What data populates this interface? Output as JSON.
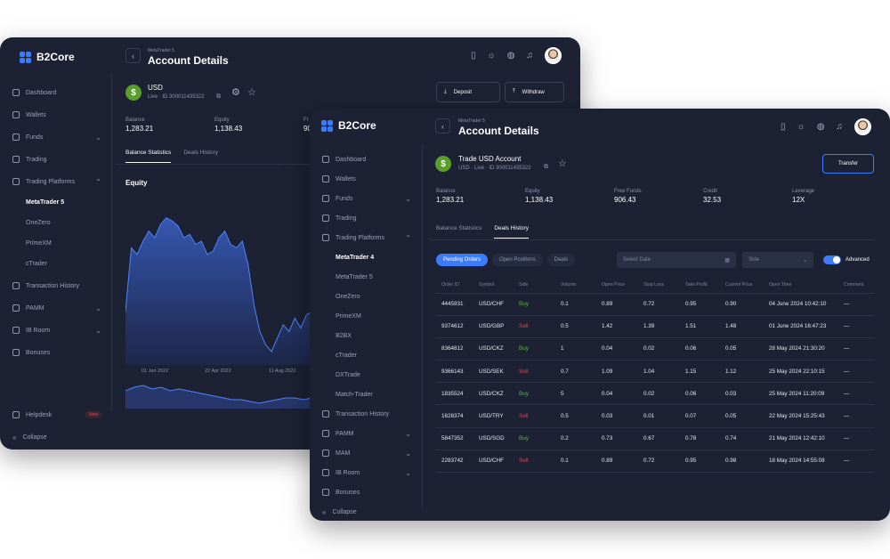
{
  "colors": {
    "window_bg": "#1c2133",
    "accent": "#3b7cff",
    "buy": "#5dbb3f",
    "sell": "#e2484a",
    "currency_badge": "#5a9e2a"
  },
  "back": {
    "brand": "B2Core",
    "header": {
      "subtitle": "MetaTrader 5",
      "title": "Account Details"
    },
    "nav": {
      "dashboard": "Dashboard",
      "wallets": "Wallets",
      "funds": "Funds",
      "trading": "Trading",
      "trading_platforms": "Trading Platforms",
      "platforms": [
        "MetaTrader 5",
        "OneZero",
        "PrimeXM",
        "cTrader"
      ],
      "transaction_history": "Transaction History",
      "pamm": "PAMM",
      "ib_room": "IB Room",
      "bonuses": "Bonuses",
      "helpdesk": "Helpdesk",
      "helpdesk_badge": "New",
      "collapse": "Collapse"
    },
    "account": {
      "currency": "USD",
      "sub": "Live · ID 300011435322",
      "currency_icon": "$"
    },
    "buttons": {
      "deposit": "Deposit",
      "withdraw": "Withdraw"
    },
    "stats": {
      "balance_label": "Balance",
      "balance_value": "1,283.21",
      "equity_label": "Equity",
      "equity_value": "1,138.43",
      "third_label": "Fr",
      "third_value": "90"
    },
    "tabs": {
      "balance_statistics": "Balance Statistics",
      "deals_history": "Deals History"
    },
    "chart_data": {
      "type": "area",
      "title": "Equity",
      "x_tick_labels": [
        "01 Jan 2022",
        "22 Apr 2022",
        "11 Aug 2022"
      ],
      "series": [
        {
          "values": [
            32,
            70,
            66,
            74,
            80,
            76,
            84,
            88,
            86,
            83,
            76,
            78,
            72,
            74,
            66,
            68,
            76,
            80,
            72,
            70,
            74,
            60,
            36,
            20,
            12,
            8,
            16,
            24,
            20,
            28,
            22,
            30,
            32
          ]
        }
      ],
      "overview": {
        "values": [
          10,
          12,
          13,
          11,
          12,
          10,
          11,
          10,
          9,
          8,
          7,
          6,
          5,
          5,
          4,
          3,
          4,
          5,
          6,
          6,
          5,
          6
        ]
      }
    }
  },
  "front": {
    "brand": "B2Core",
    "header": {
      "subtitle": "MetaTrader 5",
      "title": "Account Details"
    },
    "nav": {
      "dashboard": "Dashboard",
      "wallets": "Wallets",
      "funds": "Funds",
      "trading": "Trading",
      "trading_platforms": "Trading Platforms",
      "platforms": [
        "MetaTrader 4",
        "MetaTrader 5",
        "OneZero",
        "PrimeXM",
        "B2BX",
        "cTrader",
        "DXTrade",
        "Match-Trader"
      ],
      "transaction_history": "Transaction History",
      "pamm": "PAMM",
      "mam": "MAM",
      "ib_room": "IB Room",
      "bonuses": "Bonuses",
      "collapse": "Collapse"
    },
    "account": {
      "title": "Trade USD Account",
      "sub": "USD · Live · ID 300011435322",
      "currency_icon": "$"
    },
    "buttons": {
      "transfer": "Transfer"
    },
    "stats": [
      {
        "label": "Balance",
        "value": "1,283.21"
      },
      {
        "label": "Equity",
        "value": "1,138.43"
      },
      {
        "label": "Free Funds",
        "value": "906.43"
      },
      {
        "label": "Credit",
        "value": "32.53"
      },
      {
        "label": "Leverage",
        "value": "12X"
      }
    ],
    "tabs": {
      "balance_statistics": "Balance Statistics",
      "deals_history": "Deals History"
    },
    "filters": {
      "pending_orders": "Pending Orders",
      "open_positions": "Open Positions",
      "deals": "Deals",
      "date_placeholder": "Select Date",
      "side_placeholder": "Side",
      "advanced": "Advanced"
    },
    "table": {
      "headers": [
        "Order ID",
        "Symbol",
        "Side",
        "Volume",
        "Open Price",
        "Stop Loss",
        "Take Profit",
        "Current Price",
        "Open Time",
        "Comment"
      ],
      "rows": [
        [
          "4445931",
          "USD/CHF",
          "Buy",
          "0.1",
          "0.89",
          "0.72",
          "0.95",
          "0.90",
          "04 June 2024 10:42:10",
          "—"
        ],
        [
          "9374612",
          "USD/GBP",
          "Sell",
          "0.5",
          "1.42",
          "1.39",
          "1.51",
          "1.48",
          "01 June 2024 16:47:23",
          "—"
        ],
        [
          "8364812",
          "USD/CKZ",
          "Buy",
          "1",
          "0.04",
          "0.02",
          "0.06",
          "0.05",
          "28 May 2024 21:30:20",
          "—"
        ],
        [
          "9366143",
          "USD/SEK",
          "Sell",
          "0.7",
          "1.09",
          "1.04",
          "1.15",
          "1.12",
          "25 May 2024 22:10:15",
          "—"
        ],
        [
          "1835524",
          "USD/CKZ",
          "Buy",
          "5",
          "0.04",
          "0.02",
          "0.06",
          "0.03",
          "25 May 2024 11:20:09",
          "—"
        ],
        [
          "1628374",
          "USD/TRY",
          "Sell",
          "0.5",
          "0.03",
          "0.01",
          "0.07",
          "0.05",
          "22 May 2024 15:25:43",
          "—"
        ],
        [
          "5847352",
          "USD/SGD",
          "Buy",
          "0.2",
          "0.73",
          "0.67",
          "0.78",
          "0.74",
          "21 May 2024 12:42:10",
          "—"
        ],
        [
          "2283742",
          "USD/CHF",
          "Sell",
          "0.1",
          "0.89",
          "0.72",
          "0.95",
          "0.98",
          "18 May 2024 14:55:08",
          "—"
        ]
      ]
    }
  }
}
